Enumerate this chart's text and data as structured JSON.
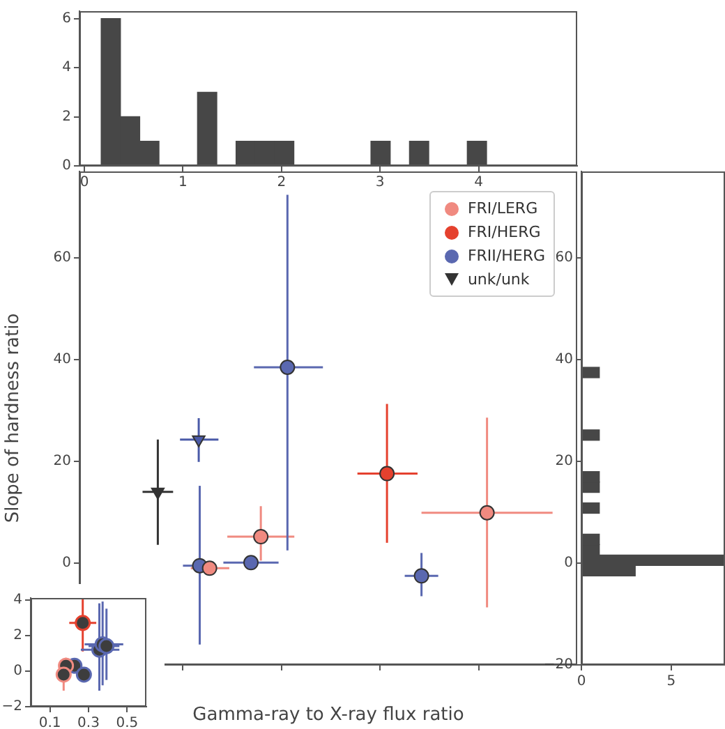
{
  "chart_data": [
    {
      "type": "histogram",
      "bins": [
        0.17,
        0.366,
        0.561,
        0.757,
        0.952,
        1.148,
        1.343,
        1.539,
        1.734,
        1.93,
        2.125,
        2.321,
        2.516,
        2.712,
        2.907,
        3.103,
        3.298,
        3.494,
        3.689,
        3.885,
        4.08
      ],
      "values": [
        6,
        2,
        1,
        0,
        0,
        3,
        0,
        1,
        1,
        1,
        0,
        0,
        0,
        0,
        1,
        0,
        1,
        0,
        0,
        1
      ],
      "color": "#474747",
      "xlim": [
        -0.05,
        5
      ],
      "xticks": [
        0,
        1,
        2,
        3,
        4
      ],
      "ylim": [
        0,
        6.3
      ],
      "yticks": [
        0,
        2,
        4,
        6
      ]
    },
    {
      "type": "scatter",
      "xlabel": "Gamma-ray to X-ray flux ratio",
      "ylabel": "Slope of hardness ratio",
      "xlim": [
        -0.05,
        5
      ],
      "xticks": [
        0,
        1,
        2,
        3,
        4
      ],
      "ylim": [
        -20,
        77
      ],
      "yticks": [
        0,
        20,
        40,
        60
      ],
      "tick_labels": "y",
      "legend": "top right",
      "series": [
        {
          "name": "FRI/LERG",
          "color": "#f08a80",
          "marker": "circle",
          "x": [
            4.085,
            1.79,
            1.27
          ],
          "values": [
            9.9,
            5.2,
            -1.0
          ],
          "errors": [
            [
              -8.7,
              28.6
            ],
            [
              0.5,
              11.2
            ],
            null
          ],
          "xerrors": [
            [
              3.42,
              4.75
            ],
            [
              1.45,
              2.13
            ],
            [
              1.08,
              1.47
            ]
          ]
        },
        {
          "name": "FRI/HERG",
          "color": "#e5412e",
          "marker": "circle",
          "x": [
            3.07
          ],
          "values": [
            17.6
          ],
          "errors": [
            [
              4.0,
              31.3
            ]
          ],
          "xerrors": [
            [
              2.77,
              3.38
            ]
          ]
        },
        {
          "name": "FRII/HERG",
          "color": "#5a68b0",
          "marker": "circle",
          "x": [
            2.06,
            1.69,
            1.17,
            3.42
          ],
          "values": [
            38.5,
            0.1,
            -0.5,
            -2.5
          ],
          "errors": [
            [
              2.5,
              72.4
            ],
            null,
            [
              -16,
              15.2
            ],
            [
              -6.5,
              2.0
            ]
          ],
          "xerrors": [
            [
              1.72,
              2.42
            ],
            [
              1.41,
              1.97
            ],
            [
              1.0,
              1.2
            ],
            [
              3.25,
              3.59
            ]
          ]
        },
        {
          "color": "#4a5aa8",
          "marker": "triangle",
          "x": [
            1.16
          ],
          "values": [
            24.3
          ],
          "errors": [
            [
              19.9,
              28.5
            ]
          ],
          "xerrors": [
            [
              0.97,
              1.36
            ]
          ]
        },
        {
          "name": "unk/unk",
          "color": "#333333",
          "marker": "triangle",
          "x": [
            0.745
          ],
          "values": [
            14.0
          ],
          "errors": [
            [
              3.6,
              24.3
            ]
          ],
          "xerrors": [
            [
              0.59,
              0.9
            ]
          ]
        }
      ]
    },
    {
      "type": "histogram",
      "orientation": "horizontal",
      "bins": [
        -2.5,
        -0.45,
        1.6,
        3.65,
        5.7,
        7.75,
        9.8,
        11.85,
        13.9,
        15.95,
        18,
        20.05,
        22.1,
        24.15,
        26.2,
        28.25,
        30.3,
        32.35,
        34.4,
        36.45,
        38.5
      ],
      "values": [
        3,
        8,
        1,
        1,
        0,
        0,
        1,
        0,
        1,
        1,
        0,
        0,
        0,
        1,
        0,
        0,
        0,
        0,
        0,
        1
      ],
      "color": "#474747",
      "ylim": [
        -20,
        77
      ],
      "yticks": [
        {
          "value": -20,
          "label": "−20"
        },
        0,
        20,
        40,
        60
      ],
      "xlim": [
        0,
        8
      ],
      "xticks": [
        0,
        5
      ]
    },
    {
      "type": "scatter",
      "xlim": [
        0,
        0.6
      ],
      "xticks": [
        0.1,
        0.3,
        0.5
      ],
      "ylim": [
        -2,
        4.1
      ],
      "yticks": [
        {
          "value": -2,
          "label": "−2"
        },
        0,
        2,
        4
      ],
      "series": [
        {
          "color": "#f08a80",
          "marker": "circle",
          "colors": [
            "#3d3d3d",
            "#3d3d3d"
          ],
          "x": [
            0.183,
            0.171
          ],
          "values": [
            0.3,
            -0.2
          ],
          "errors": [
            [
              -0.2,
              0.75
            ],
            [
              -1.1,
              0.3
            ]
          ],
          "xerrors": [
            [
              0.15,
              0.2
            ],
            null
          ]
        },
        {
          "color": "#e5412e",
          "marker": "circle",
          "colors": [
            "#3d3d3d"
          ],
          "x": [
            0.27
          ],
          "values": [
            2.7
          ],
          "errors": [
            [
              1.1,
              4.1
            ]
          ],
          "xerrors": [
            [
              0.2,
              0.34
            ]
          ]
        },
        {
          "color": "#5a68b0",
          "marker": "circle",
          "colors": [
            "#3d3d3d",
            "#3d3d3d",
            "#3d3d3d",
            "#3d3d3d",
            "#3d3d3d"
          ],
          "x": [
            0.356,
            0.373,
            0.393,
            0.227,
            0.276
          ],
          "values": [
            1.2,
            1.5,
            1.4,
            0.3,
            -0.2
          ],
          "errors": [
            [
              -1.1,
              3.8
            ],
            [
              -0.8,
              3.9
            ],
            [
              -0.5,
              3.5
            ],
            [
              -0.1,
              0.6
            ],
            null
          ],
          "xerrors": [
            [
              0.26,
              0.46
            ],
            [
              0.28,
              0.48
            ],
            [
              0.3,
              0.46
            ],
            [
              0.2,
              0.25
            ],
            [
              0.25,
              0.31
            ]
          ]
        }
      ]
    }
  ]
}
